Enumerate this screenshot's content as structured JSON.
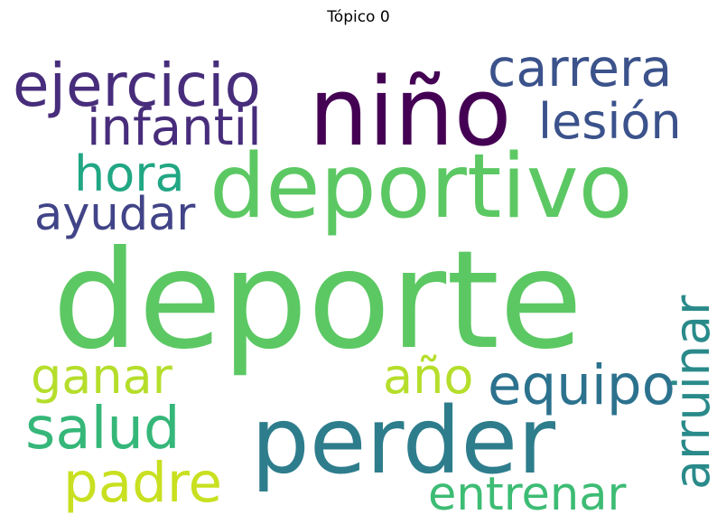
{
  "title": "Tópico 0",
  "words": [
    {
      "text": "deporte",
      "color": "#5cc863"
    },
    {
      "text": "deportivo",
      "color": "#5cc863"
    },
    {
      "text": "perder",
      "color": "#2e7d8c"
    },
    {
      "text": "niño",
      "color": "#440154"
    },
    {
      "text": "ejercicio",
      "color": "#472d7b"
    },
    {
      "text": "carrera",
      "color": "#3b528b"
    },
    {
      "text": "lesión",
      "color": "#3b528b"
    },
    {
      "text": "infantil",
      "color": "#472d7b"
    },
    {
      "text": "hora",
      "color": "#21a784"
    },
    {
      "text": "ayudar",
      "color": "#414487"
    },
    {
      "text": "arruinar",
      "color": "#2a8a8a"
    },
    {
      "text": "ganar",
      "color": "#b5de2b"
    },
    {
      "text": "año",
      "color": "#b5de2b"
    },
    {
      "text": "equipo",
      "color": "#2c728e"
    },
    {
      "text": "salud",
      "color": "#35b779"
    },
    {
      "text": "padre",
      "color": "#c8e020"
    },
    {
      "text": "entrenar",
      "color": "#3dbc74"
    }
  ]
}
